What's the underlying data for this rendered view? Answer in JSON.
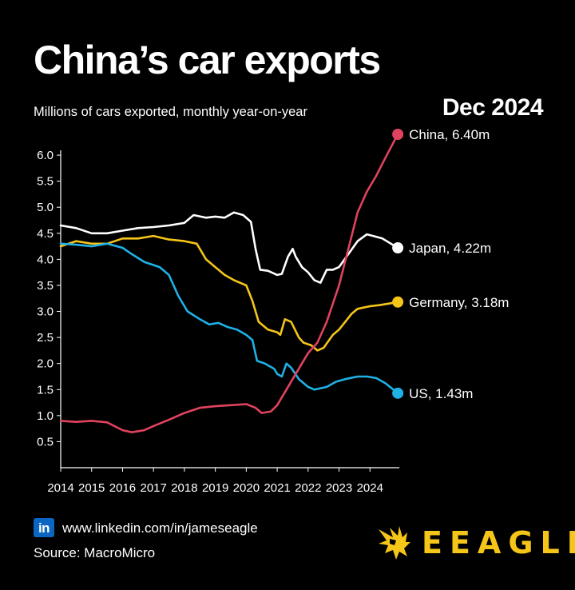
{
  "header": {
    "title": "China’s car exports",
    "subtitle": "Millions of cars exported, monthly year-on-year",
    "date": "Dec 2024"
  },
  "footer": {
    "linkedin_badge": "in",
    "link": "www.linkedin.com/in/jameseagle",
    "source": "Source: MacroMicro",
    "brand": "EEAGLI"
  },
  "colors": {
    "background": "#000000",
    "china": "#e0435e",
    "japan": "#ffffff",
    "germany": "#f5c518",
    "us": "#1fb1e6",
    "axis": "#ffffff",
    "brand": "#f5c518"
  },
  "chart_data": {
    "type": "line",
    "title": "China’s car exports",
    "subtitle": "Millions of cars exported, monthly year-on-year",
    "xlabel": "",
    "ylabel": "",
    "xlim": [
      2014,
      2025
    ],
    "ylim": [
      0,
      6.4
    ],
    "x_ticks": [
      "2014",
      "2015",
      "2016",
      "2017",
      "2018",
      "2019",
      "2020",
      "2021",
      "2022",
      "2023",
      "2024"
    ],
    "y_ticks": [
      "0.5",
      "1.0",
      "1.5",
      "2.0",
      "2.5",
      "3.0",
      "3.5",
      "4.0",
      "4.5",
      "5.0",
      "5.5",
      "6.0"
    ],
    "grid": false,
    "legend": "end-of-line labels",
    "series": [
      {
        "name": "Japan",
        "end_label": "Japan, 4.22m",
        "color": "#ffffff",
        "points": [
          [
            2014.0,
            4.65
          ],
          [
            2014.5,
            4.6
          ],
          [
            2015.0,
            4.5
          ],
          [
            2015.5,
            4.5
          ],
          [
            2016.0,
            4.55
          ],
          [
            2016.5,
            4.6
          ],
          [
            2017.0,
            4.62
          ],
          [
            2017.5,
            4.65
          ],
          [
            2018.0,
            4.7
          ],
          [
            2018.3,
            4.85
          ],
          [
            2018.7,
            4.8
          ],
          [
            2019.0,
            4.82
          ],
          [
            2019.3,
            4.8
          ],
          [
            2019.6,
            4.9
          ],
          [
            2019.9,
            4.85
          ],
          [
            2020.15,
            4.72
          ],
          [
            2020.3,
            4.2
          ],
          [
            2020.45,
            3.8
          ],
          [
            2020.7,
            3.78
          ],
          [
            2021.0,
            3.7
          ],
          [
            2021.15,
            3.72
          ],
          [
            2021.35,
            4.05
          ],
          [
            2021.5,
            4.2
          ],
          [
            2021.6,
            4.05
          ],
          [
            2021.8,
            3.85
          ],
          [
            2022.0,
            3.75
          ],
          [
            2022.2,
            3.6
          ],
          [
            2022.4,
            3.55
          ],
          [
            2022.6,
            3.8
          ],
          [
            2022.8,
            3.8
          ],
          [
            2023.0,
            3.85
          ],
          [
            2023.3,
            4.1
          ],
          [
            2023.6,
            4.35
          ],
          [
            2023.9,
            4.48
          ],
          [
            2024.1,
            4.45
          ],
          [
            2024.4,
            4.4
          ],
          [
            2024.9,
            4.22
          ]
        ]
      },
      {
        "name": "Germany",
        "end_label": "Germany, 3.18m",
        "color": "#f5c518",
        "points": [
          [
            2014.0,
            4.25
          ],
          [
            2014.5,
            4.35
          ],
          [
            2015.0,
            4.3
          ],
          [
            2015.5,
            4.3
          ],
          [
            2016.0,
            4.4
          ],
          [
            2016.5,
            4.4
          ],
          [
            2017.0,
            4.45
          ],
          [
            2017.5,
            4.38
          ],
          [
            2018.0,
            4.35
          ],
          [
            2018.4,
            4.3
          ],
          [
            2018.7,
            4.0
          ],
          [
            2019.0,
            3.85
          ],
          [
            2019.3,
            3.7
          ],
          [
            2019.6,
            3.6
          ],
          [
            2020.0,
            3.5
          ],
          [
            2020.2,
            3.2
          ],
          [
            2020.4,
            2.8
          ],
          [
            2020.7,
            2.65
          ],
          [
            2021.0,
            2.6
          ],
          [
            2021.1,
            2.55
          ],
          [
            2021.25,
            2.85
          ],
          [
            2021.45,
            2.8
          ],
          [
            2021.7,
            2.5
          ],
          [
            2021.85,
            2.4
          ],
          [
            2022.1,
            2.35
          ],
          [
            2022.3,
            2.25
          ],
          [
            2022.5,
            2.3
          ],
          [
            2022.8,
            2.55
          ],
          [
            2023.0,
            2.65
          ],
          [
            2023.2,
            2.8
          ],
          [
            2023.4,
            2.95
          ],
          [
            2023.6,
            3.05
          ],
          [
            2024.0,
            3.1
          ],
          [
            2024.3,
            3.12
          ],
          [
            2024.6,
            3.15
          ],
          [
            2024.9,
            3.18
          ]
        ]
      },
      {
        "name": "US",
        "end_label": "US, 1.43m",
        "color": "#1fb1e6",
        "points": [
          [
            2014.0,
            4.3
          ],
          [
            2014.5,
            4.28
          ],
          [
            2015.0,
            4.25
          ],
          [
            2015.5,
            4.3
          ],
          [
            2016.0,
            4.22
          ],
          [
            2016.3,
            4.1
          ],
          [
            2016.7,
            3.95
          ],
          [
            2017.2,
            3.85
          ],
          [
            2017.5,
            3.7
          ],
          [
            2017.8,
            3.3
          ],
          [
            2018.1,
            3.0
          ],
          [
            2018.5,
            2.85
          ],
          [
            2018.8,
            2.75
          ],
          [
            2019.1,
            2.78
          ],
          [
            2019.4,
            2.7
          ],
          [
            2019.7,
            2.65
          ],
          [
            2020.0,
            2.55
          ],
          [
            2020.2,
            2.45
          ],
          [
            2020.35,
            2.05
          ],
          [
            2020.6,
            2.0
          ],
          [
            2020.9,
            1.9
          ],
          [
            2021.0,
            1.8
          ],
          [
            2021.15,
            1.75
          ],
          [
            2021.3,
            2.0
          ],
          [
            2021.45,
            1.92
          ],
          [
            2021.7,
            1.7
          ],
          [
            2022.0,
            1.55
          ],
          [
            2022.2,
            1.5
          ],
          [
            2022.6,
            1.55
          ],
          [
            2022.9,
            1.65
          ],
          [
            2023.2,
            1.7
          ],
          [
            2023.6,
            1.75
          ],
          [
            2023.9,
            1.75
          ],
          [
            2024.2,
            1.72
          ],
          [
            2024.5,
            1.62
          ],
          [
            2024.9,
            1.43
          ]
        ]
      },
      {
        "name": "China",
        "end_label": "China, 6.40m",
        "color": "#e0435e",
        "points": [
          [
            2014.0,
            0.9
          ],
          [
            2014.5,
            0.88
          ],
          [
            2015.0,
            0.9
          ],
          [
            2015.5,
            0.87
          ],
          [
            2016.0,
            0.72
          ],
          [
            2016.3,
            0.68
          ],
          [
            2016.7,
            0.72
          ],
          [
            2017.0,
            0.8
          ],
          [
            2017.5,
            0.92
          ],
          [
            2018.0,
            1.05
          ],
          [
            2018.5,
            1.15
          ],
          [
            2019.0,
            1.18
          ],
          [
            2019.5,
            1.2
          ],
          [
            2020.0,
            1.22
          ],
          [
            2020.3,
            1.15
          ],
          [
            2020.5,
            1.05
          ],
          [
            2020.8,
            1.08
          ],
          [
            2021.0,
            1.2
          ],
          [
            2021.3,
            1.5
          ],
          [
            2021.6,
            1.8
          ],
          [
            2022.0,
            2.2
          ],
          [
            2022.3,
            2.4
          ],
          [
            2022.6,
            2.8
          ],
          [
            2023.0,
            3.5
          ],
          [
            2023.3,
            4.2
          ],
          [
            2023.6,
            4.9
          ],
          [
            2023.9,
            5.3
          ],
          [
            2024.2,
            5.6
          ],
          [
            2024.5,
            5.95
          ],
          [
            2024.9,
            6.4
          ]
        ]
      }
    ]
  }
}
